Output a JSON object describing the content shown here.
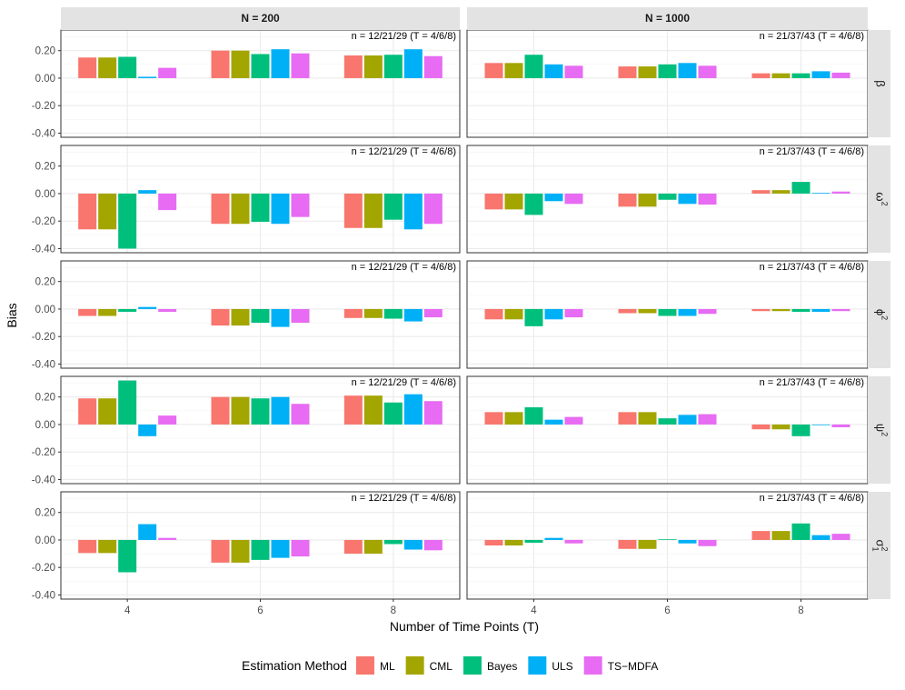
{
  "chart_data": {
    "type": "bar",
    "layout": "faceted grid (rows = parameters, columns = sample size)",
    "ylabel": "Bias",
    "xlabel": "Number of Time Points (T)",
    "categories": [
      "4",
      "6",
      "8"
    ],
    "ylim": [
      -0.43,
      0.35
    ],
    "yticks": [
      -0.4,
      -0.2,
      0.0,
      0.2
    ],
    "ytick_labels": [
      "-0.40",
      "-0.20",
      "0.00",
      "0.20"
    ],
    "columns": [
      {
        "label": "N = 200",
        "annotation": "n = 12/21/29 (T = 4/6/8)"
      },
      {
        "label": "N = 1000",
        "annotation": "n = 21/37/43 (T = 4/6/8)"
      }
    ],
    "rows": [
      {
        "id": "beta",
        "symbol": "β",
        "sup": "",
        "sub": ""
      },
      {
        "id": "omega2",
        "symbol": "ω",
        "sup": "2",
        "sub": ""
      },
      {
        "id": "phi2",
        "symbol": "ϕ",
        "sup": "2",
        "sub": ""
      },
      {
        "id": "psi2",
        "symbol": "ψ",
        "sup": "2",
        "sub": ""
      },
      {
        "id": "sigma2",
        "symbol": "σ",
        "sup": "2",
        "sub": "1"
      }
    ],
    "legend": {
      "title": "Estimation Method",
      "position": "bottom",
      "items": [
        {
          "name": "ML",
          "color": "#F8766D"
        },
        {
          "name": "CML",
          "color": "#A3A500"
        },
        {
          "name": "Bayes",
          "color": "#00BF7D"
        },
        {
          "name": "ULS",
          "color": "#00B0F6"
        },
        {
          "name": "TS−MDFA",
          "color": "#E76BF3"
        }
      ]
    },
    "values": {
      "beta": {
        "N = 200": [
          [
            0.15,
            0.15,
            0.155,
            0.01,
            0.075
          ],
          [
            0.2,
            0.2,
            0.175,
            0.21,
            0.18
          ],
          [
            0.165,
            0.165,
            0.17,
            0.21,
            0.16
          ]
        ],
        "N = 1000": [
          [
            0.11,
            0.11,
            0.17,
            0.1,
            0.09
          ],
          [
            0.085,
            0.085,
            0.1,
            0.11,
            0.09
          ],
          [
            0.035,
            0.035,
            0.035,
            0.05,
            0.04
          ]
        ]
      },
      "omega2": {
        "N = 200": [
          [
            -0.26,
            -0.26,
            -0.4,
            0.025,
            -0.12
          ],
          [
            -0.22,
            -0.22,
            -0.205,
            -0.22,
            -0.17
          ],
          [
            -0.25,
            -0.25,
            -0.19,
            -0.26,
            -0.22
          ]
        ],
        "N = 1000": [
          [
            -0.115,
            -0.115,
            -0.155,
            -0.055,
            -0.075
          ],
          [
            -0.095,
            -0.095,
            -0.045,
            -0.075,
            -0.08
          ],
          [
            0.025,
            0.025,
            0.085,
            0.005,
            0.015
          ]
        ]
      },
      "phi2": {
        "N = 200": [
          [
            -0.05,
            -0.05,
            -0.02,
            0.015,
            -0.02
          ],
          [
            -0.12,
            -0.12,
            -0.1,
            -0.13,
            -0.1
          ],
          [
            -0.065,
            -0.065,
            -0.07,
            -0.09,
            -0.06
          ]
        ],
        "N = 1000": [
          [
            -0.075,
            -0.075,
            -0.125,
            -0.075,
            -0.06
          ],
          [
            -0.03,
            -0.03,
            -0.05,
            -0.05,
            -0.035
          ],
          [
            -0.015,
            -0.015,
            -0.02,
            -0.02,
            -0.015
          ]
        ]
      },
      "psi2": {
        "N = 200": [
          [
            0.19,
            0.19,
            0.32,
            -0.085,
            0.065
          ],
          [
            0.2,
            0.2,
            0.19,
            0.2,
            0.15
          ],
          [
            0.21,
            0.21,
            0.16,
            0.22,
            0.17
          ]
        ],
        "N = 1000": [
          [
            0.09,
            0.09,
            0.125,
            0.035,
            0.055
          ],
          [
            0.09,
            0.09,
            0.045,
            0.07,
            0.075
          ],
          [
            -0.035,
            -0.035,
            -0.085,
            -0.005,
            -0.02
          ]
        ]
      },
      "sigma2": {
        "N = 200": [
          [
            -0.095,
            -0.095,
            -0.235,
            0.115,
            0.015
          ],
          [
            -0.165,
            -0.165,
            -0.145,
            -0.13,
            -0.12
          ],
          [
            -0.1,
            -0.1,
            -0.03,
            -0.07,
            -0.075
          ]
        ],
        "N = 1000": [
          [
            -0.04,
            -0.04,
            -0.02,
            0.015,
            -0.025
          ],
          [
            -0.065,
            -0.065,
            0.005,
            -0.025,
            -0.045
          ],
          [
            0.065,
            0.065,
            0.12,
            0.035,
            0.045
          ]
        ]
      }
    }
  }
}
